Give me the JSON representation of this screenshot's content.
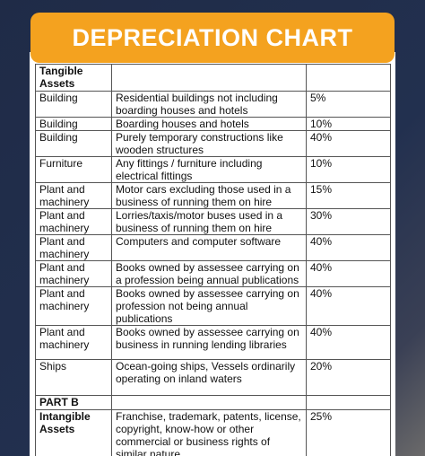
{
  "header": {
    "title": "DEPRECIATION CHART"
  },
  "table": {
    "rows": [
      {
        "section": "Tangible Assets"
      },
      [
        "Building",
        "Residential buildings not including boarding houses and hotels",
        "5%"
      ],
      [
        "Building",
        "Boarding houses and hotels",
        "10%"
      ],
      [
        "Building",
        "Purely temporary constructions like wooden structures",
        "40%"
      ],
      [
        "Furniture",
        "Any fittings / furniture including electrical fittings",
        "10%"
      ],
      [
        "Plant and machinery",
        "Motor cars excluding those used in a business of running them on hire",
        "15%"
      ],
      [
        "Plant and machinery",
        "Lorries/taxis/motor buses used in a business of running them on hire",
        "30%"
      ],
      [
        "Plant and machinery",
        "Computers and computer software",
        "40%"
      ],
      [
        "Plant and machinery",
        "Books owned by assessee carrying on a profession being annual publications",
        "40%"
      ],
      [
        "Plant and machinery",
        "Books owned by assessee carrying on profession not being annual publications",
        "40%"
      ],
      [
        "Plant and machinery",
        "Books owned by assessee carrying on business in running lending libraries",
        "40%"
      ],
      [
        "Ships",
        "Ocean-going ships, Vessels ordinarily operating on inland waters",
        "20%"
      ],
      {
        "section": "PART B"
      },
      [
        "Intangible Assets",
        "Franchise, trademark, patents, license, copyright, know-how or other commercial or business rights of similar nature",
        "25%"
      ]
    ]
  }
}
